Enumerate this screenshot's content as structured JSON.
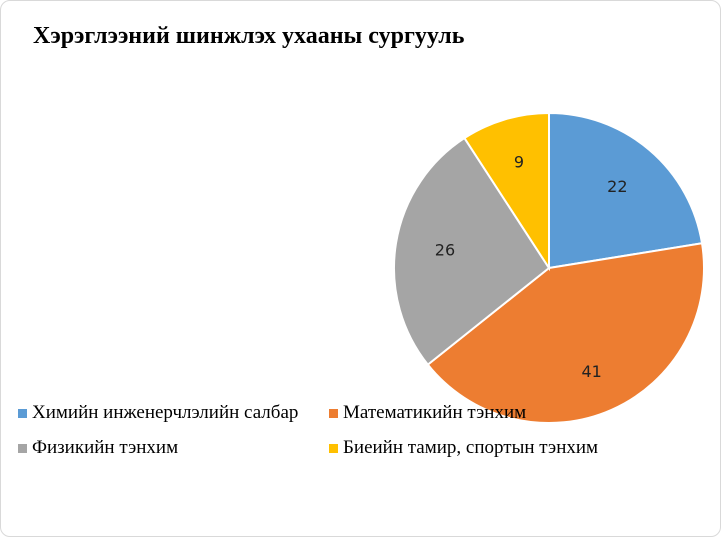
{
  "chart_data": {
    "type": "pie",
    "title": "Хэрэглээний шинжлэх ухааны сургууль",
    "categories": [
      "Химийн инженерчлэлийн салбар",
      "Математикийн тэнхим",
      "Физикийн тэнхим",
      "Биеийн тамир, спортын тэнхим"
    ],
    "values": [
      22,
      41,
      26,
      9
    ],
    "colors": [
      "#5b9bd5",
      "#ed7d31",
      "#a5a5a5",
      "#ffc000"
    ],
    "data_labels": [
      "22",
      "41",
      "26",
      "9"
    ],
    "legend_position": "bottom-left"
  }
}
